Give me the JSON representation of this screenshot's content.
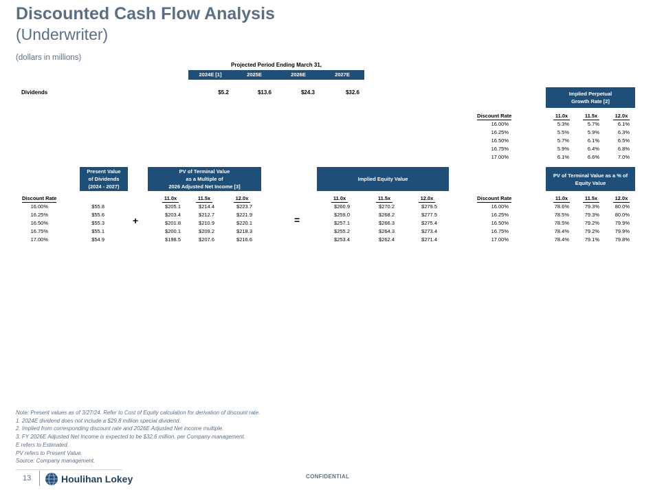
{
  "title": "Discounted Cash Flow Analysis",
  "title_sub": "(Underwriter)",
  "subtitle": "(dollars in millions)",
  "projection": {
    "title": "Projected Period Ending March 31,",
    "years": [
      "2024E [1]",
      "2025E",
      "2026E",
      "2027E"
    ]
  },
  "dividends": {
    "label": "Dividends",
    "values": [
      "$5.2",
      "$13.6",
      "$24.3",
      "$32.6"
    ]
  },
  "implied_growth": {
    "header_line1": "Implied Perpetual",
    "header_line2": "Growth Rate [2]",
    "rate_label": "Discount Rate",
    "cols": [
      "11.0x",
      "11.5x",
      "12.0x"
    ],
    "rows": [
      {
        "rate": "16.00%",
        "vals": [
          "5.3%",
          "5.7%",
          "6.1%"
        ]
      },
      {
        "rate": "16.25%",
        "vals": [
          "5.5%",
          "5.9%",
          "6.3%"
        ]
      },
      {
        "rate": "16.50%",
        "vals": [
          "5.7%",
          "6.1%",
          "6.5%"
        ]
      },
      {
        "rate": "16.75%",
        "vals": [
          "5.9%",
          "6.4%",
          "6.8%"
        ]
      },
      {
        "rate": "17.00%",
        "vals": [
          "6.1%",
          "6.6%",
          "7.0%"
        ]
      }
    ]
  },
  "pv_dividends": {
    "header_line1": "Present Value",
    "header_line2": "of Dividends",
    "header_line3": "(2024 - 2027)",
    "rate_label": "Discount Rate",
    "rows": [
      {
        "rate": "16.00%",
        "val": "$55.8"
      },
      {
        "rate": "16.25%",
        "val": "$55.6"
      },
      {
        "rate": "16.50%",
        "val": "$55.3"
      },
      {
        "rate": "16.75%",
        "val": "$55.1"
      },
      {
        "rate": "17.00%",
        "val": "$54.9"
      }
    ]
  },
  "pv_terminal": {
    "header_line1": "PV of Terminal Value",
    "header_line2": "as a Multiple of",
    "header_line3": "2026 Adjusted Net Income [3]",
    "cols": [
      "11.0x",
      "11.5x",
      "12.0x"
    ],
    "rows": [
      [
        "$205.1",
        "$214.4",
        "$223.7"
      ],
      [
        "$203.4",
        "$212.7",
        "$221.9"
      ],
      [
        "$201.8",
        "$210.9",
        "$220.1"
      ],
      [
        "$200.1",
        "$209.2",
        "$218.3"
      ],
      [
        "$198.5",
        "$207.6",
        "$216.6"
      ]
    ]
  },
  "equity_value": {
    "header": "Implied Equity Value",
    "cols": [
      "11.0x",
      "11.5x",
      "12.0x"
    ],
    "rows": [
      [
        "$260.9",
        "$270.2",
        "$279.5"
      ],
      [
        "$259.0",
        "$268.2",
        "$277.5"
      ],
      [
        "$257.1",
        "$266.3",
        "$275.4"
      ],
      [
        "$255.2",
        "$264.3",
        "$273.4"
      ],
      [
        "$253.4",
        "$262.4",
        "$271.4"
      ]
    ]
  },
  "pv_pct": {
    "header_line1": "PV of Terminal Value as a % of",
    "header_line2": "Equity Value",
    "rate_label": "Discount Rate",
    "cols": [
      "11.0x",
      "11.5x",
      "12.0x"
    ],
    "rows": [
      {
        "rate": "16.00%",
        "vals": [
          "78.6%",
          "79.3%",
          "80.0%"
        ]
      },
      {
        "rate": "16.25%",
        "vals": [
          "78.5%",
          "79.3%",
          "80.0%"
        ]
      },
      {
        "rate": "16.50%",
        "vals": [
          "78.5%",
          "79.2%",
          "79.9%"
        ]
      },
      {
        "rate": "16.75%",
        "vals": [
          "78.4%",
          "79.2%",
          "79.9%"
        ]
      },
      {
        "rate": "17.00%",
        "vals": [
          "78.4%",
          "79.1%",
          "79.8%"
        ]
      }
    ]
  },
  "operators": {
    "plus": "+",
    "equals": "="
  },
  "notes": [
    "Note: Present values as of 3/27/24. Refer to Cost of Equity calculation for derivation of discount rate.",
    "1. 2024E dividend does not include a $29.8 million special dividend.",
    "2. Implied from corresponding discount rate and 2026E Adjusted Net income multiple.",
    "3. FY 2026E Adjusted Net Income is expected to be $32.6 million, per Company management.",
    "E refers to Estimated.",
    "PV refers to Present Value.",
    "Source: Company management."
  ],
  "footer": {
    "page_number": "13",
    "logo_text": "Houlihan Lokey",
    "confidential": "CONFIDENTIAL"
  },
  "colors": {
    "title": "#5a6f86",
    "header_fill": "#1f4e79"
  }
}
